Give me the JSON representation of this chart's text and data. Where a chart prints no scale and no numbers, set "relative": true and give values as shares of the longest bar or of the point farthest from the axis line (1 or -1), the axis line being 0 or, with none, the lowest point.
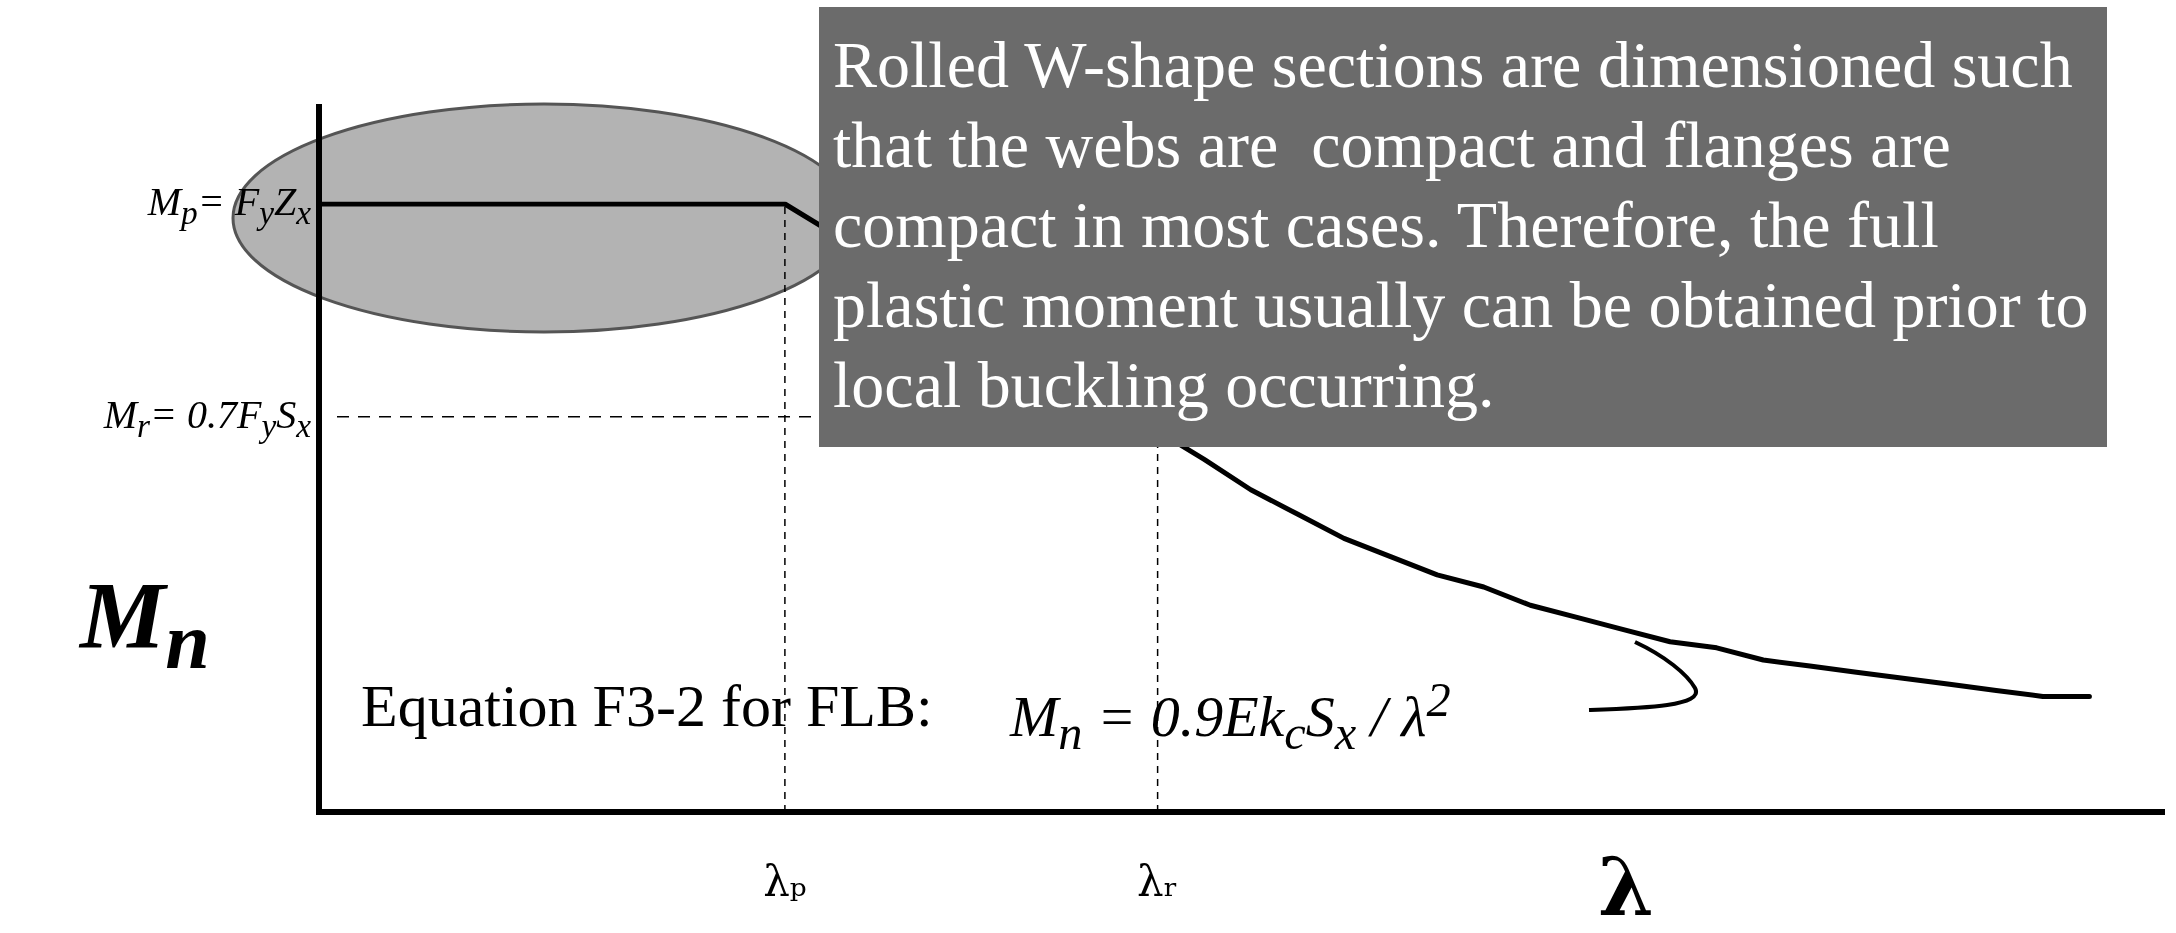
{
  "chart_data": {
    "type": "line",
    "relative": true,
    "categories": [
      null,
      null,
      null,
      null,
      null,
      null,
      null,
      null,
      null,
      null,
      "λₚ",
      null,
      null,
      null,
      null,
      null,
      null,
      null,
      "λᵣ",
      null,
      null,
      null,
      null,
      null,
      null,
      null,
      null,
      null,
      null,
      null,
      null,
      null,
      null,
      null,
      null,
      null,
      null,
      null,
      null,
      null
    ],
    "values": [
      1,
      1,
      1,
      1,
      1,
      1,
      1,
      1,
      1,
      1,
      1,
      null,
      null,
      null,
      null,
      null,
      null,
      null,
      null,
      0.58,
      0.53,
      0.49,
      0.45,
      0.42,
      0.39,
      0.37,
      0.34,
      0.32,
      0.3,
      0.28,
      0.27,
      0.25,
      0.24,
      0.23,
      0.22,
      0.21,
      0.2,
      0.19,
      0.19,
      null
    ],
    "color": "#000000",
    "marker": "none",
    "line_style": "solid",
    "grid": "x",
    "xlabel": "λ",
    "ylabel": "M$_{n}$",
    "ref_lines": [
      {
        "axis": "y",
        "value": 0.65,
        "label": "M$_{r}$= 0.7F$_{y}$S$_{x}$",
        "line_style": "dashed"
      }
    ],
    "annotations": [
      "M$_{p}$= F$_{y}$Z$_{x}$",
      "Rolled W-shape sections are dimensioned such that the webs are  compact and flanges are compact in most cases. Therefore, the full plastic moment usually can be obtained prior to local buckling occurring.",
      "Equation F3-2 for FLB:",
      "M$_{n}$ = 0.9Ek$_{c}$S$_{x}$ / λ$^{2}$"
    ]
  }
}
